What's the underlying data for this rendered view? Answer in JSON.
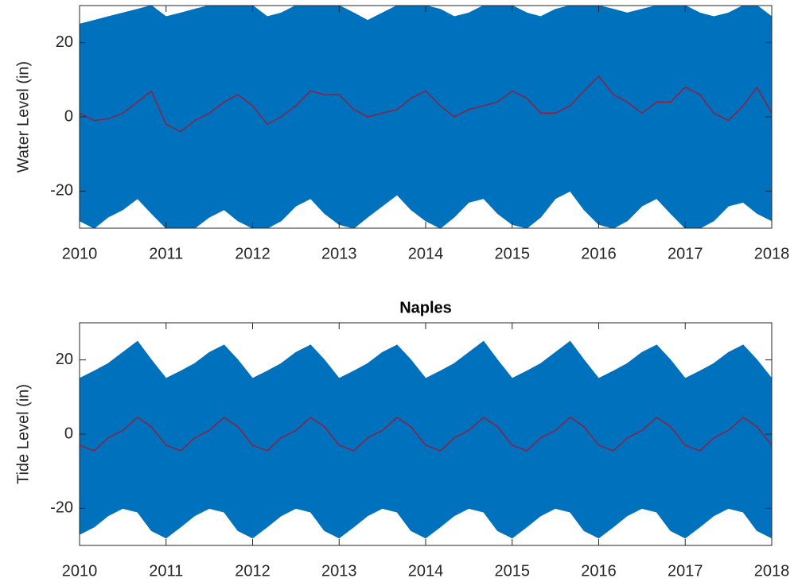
{
  "chart_data": [
    {
      "type": "line",
      "ylabel": "Water Level (in)",
      "x": [
        2010,
        2010.17,
        2010.33,
        2010.5,
        2010.67,
        2010.83,
        2011,
        2011.17,
        2011.33,
        2011.5,
        2011.67,
        2011.83,
        2012,
        2012.17,
        2012.33,
        2012.5,
        2012.67,
        2012.83,
        2013,
        2013.17,
        2013.33,
        2013.5,
        2013.67,
        2013.83,
        2014,
        2014.17,
        2014.33,
        2014.5,
        2014.67,
        2014.83,
        2015,
        2015.17,
        2015.33,
        2015.5,
        2015.67,
        2015.83,
        2016,
        2016.17,
        2016.33,
        2016.5,
        2016.67,
        2016.83,
        2017,
        2017.17,
        2017.33,
        2017.5,
        2017.67,
        2017.83,
        2018
      ],
      "series": [
        {
          "color": "#0072bd",
          "high": [
            25,
            26,
            27,
            28,
            29,
            30,
            27,
            28,
            29,
            30,
            30,
            30,
            30,
            27,
            28,
            30,
            30,
            30,
            30,
            28,
            26,
            28,
            30,
            30,
            30,
            29,
            27,
            28,
            30,
            30,
            30,
            28,
            27,
            29,
            30,
            30,
            30,
            29,
            28,
            29,
            30,
            30,
            30,
            28,
            27,
            28,
            30,
            30,
            27
          ],
          "low": [
            -28,
            -30,
            -27,
            -25,
            -22,
            -26,
            -30,
            -30,
            -30,
            -27,
            -25,
            -28,
            -30,
            -30,
            -28,
            -24,
            -22,
            -26,
            -29,
            -30,
            -27,
            -24,
            -21,
            -25,
            -28,
            -30,
            -27,
            -23,
            -22,
            -26,
            -29,
            -30,
            -27,
            -22,
            -20,
            -25,
            -29,
            -30,
            -28,
            -24,
            -22,
            -26,
            -30,
            -30,
            -28,
            -24,
            -23,
            -26,
            -28
          ]
        },
        {
          "color": "#a2142f",
          "values": [
            1,
            -1,
            -0.5,
            1,
            4,
            7,
            -2,
            -4,
            -1,
            1,
            4,
            6,
            3,
            -2,
            0,
            3,
            7,
            6,
            6,
            2,
            0,
            1,
            2,
            5,
            7,
            3,
            0,
            2,
            3,
            4,
            7,
            5,
            1,
            1,
            3,
            7,
            11,
            6,
            4,
            1,
            4,
            4,
            8,
            6,
            1,
            -1,
            3,
            8,
            1
          ]
        }
      ],
      "xlim": [
        2010,
        2018
      ],
      "xticks": [
        2010,
        2011,
        2012,
        2013,
        2014,
        2015,
        2016,
        2017,
        2018
      ],
      "ylim": [
        -30,
        30
      ],
      "yticks": [
        -20,
        0,
        20
      ]
    },
    {
      "type": "line",
      "title": "Naples",
      "ylabel": "Tide Level (in)",
      "x": [
        2010,
        2010.17,
        2010.33,
        2010.5,
        2010.67,
        2010.83,
        2011,
        2011.17,
        2011.33,
        2011.5,
        2011.67,
        2011.83,
        2012,
        2012.17,
        2012.33,
        2012.5,
        2012.67,
        2012.83,
        2013,
        2013.17,
        2013.33,
        2013.5,
        2013.67,
        2013.83,
        2014,
        2014.17,
        2014.33,
        2014.5,
        2014.67,
        2014.83,
        2015,
        2015.17,
        2015.33,
        2015.5,
        2015.67,
        2015.83,
        2016,
        2016.17,
        2016.33,
        2016.5,
        2016.67,
        2016.83,
        2017,
        2017.17,
        2017.33,
        2017.5,
        2017.67,
        2017.83,
        2018
      ],
      "series": [
        {
          "color": "#0072bd",
          "high": [
            15,
            17,
            19,
            22,
            25,
            20,
            15,
            17,
            19,
            22,
            24,
            20,
            15,
            17,
            19,
            22,
            24,
            20,
            15,
            17,
            19,
            22,
            24,
            20,
            15,
            17,
            19,
            22,
            25,
            20,
            15,
            17,
            19,
            22,
            25,
            20,
            15,
            17,
            19,
            22,
            24,
            20,
            15,
            17,
            19,
            22,
            24,
            20,
            15
          ],
          "low": [
            -27,
            -25,
            -22,
            -20,
            -21,
            -26,
            -28,
            -25,
            -22,
            -20,
            -21,
            -26,
            -28,
            -25,
            -22,
            -20,
            -21,
            -26,
            -28,
            -25,
            -22,
            -20,
            -21,
            -26,
            -28,
            -25,
            -22,
            -20,
            -21,
            -26,
            -28,
            -25,
            -22,
            -20,
            -21,
            -26,
            -28,
            -25,
            -22,
            -20,
            -21,
            -26,
            -28,
            -25,
            -22,
            -20,
            -21,
            -26,
            -28
          ]
        },
        {
          "color": "#a2142f",
          "values": [
            -3,
            -4.5,
            -1,
            1,
            4.5,
            2,
            -3,
            -4.5,
            -1,
            1,
            4.5,
            2,
            -3,
            -4.5,
            -1,
            1,
            4.5,
            2,
            -3,
            -4.5,
            -1,
            1,
            4.5,
            2,
            -3,
            -4.5,
            -1,
            1,
            4.5,
            2,
            -3,
            -4.5,
            -1,
            1,
            4.5,
            2,
            -3,
            -4.5,
            -1,
            1,
            4.5,
            2,
            -3,
            -4.5,
            -1,
            1,
            4.5,
            2,
            -3
          ]
        }
      ],
      "xlim": [
        2010,
        2018
      ],
      "xticks": [
        2010,
        2011,
        2012,
        2013,
        2014,
        2015,
        2016,
        2017,
        2018
      ],
      "ylim": [
        -30,
        30
      ],
      "yticks": [
        -20,
        0,
        20
      ]
    }
  ]
}
